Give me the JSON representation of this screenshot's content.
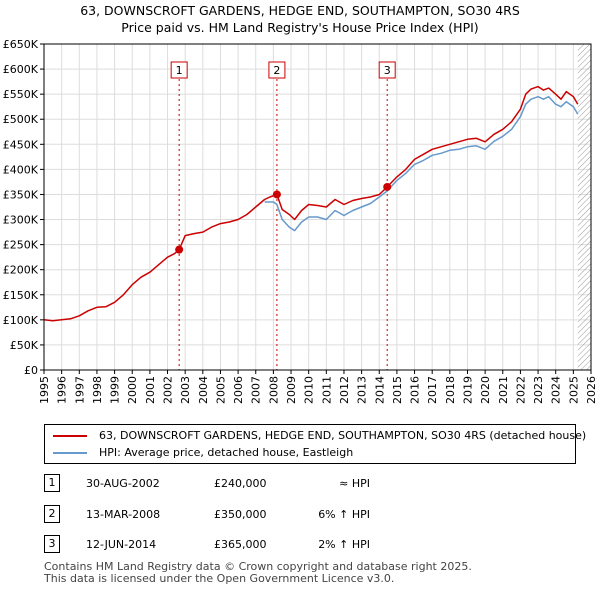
{
  "chart_data": {
    "type": "line",
    "title": "63, DOWNSCROFT GARDENS, HEDGE END, SOUTHAMPTON, SO30 4RS",
    "subtitle": "Price paid vs. HM Land Registry's House Price Index (HPI)",
    "xlabel": "",
    "ylabel": "",
    "xlim": [
      1995,
      2026
    ],
    "ylim": [
      0,
      650000
    ],
    "y_ticks": [
      0,
      50000,
      100000,
      150000,
      200000,
      250000,
      300000,
      350000,
      400000,
      450000,
      500000,
      550000,
      600000,
      650000
    ],
    "y_tick_labels": [
      "£0",
      "£50K",
      "£100K",
      "£150K",
      "£200K",
      "£250K",
      "£300K",
      "£350K",
      "£400K",
      "£450K",
      "£500K",
      "£550K",
      "£600K",
      "£650K"
    ],
    "x_ticks": [
      1995,
      1996,
      1997,
      1998,
      1999,
      2000,
      2001,
      2002,
      2003,
      2004,
      2005,
      2006,
      2007,
      2008,
      2009,
      2010,
      2011,
      2012,
      2013,
      2014,
      2015,
      2016,
      2017,
      2018,
      2019,
      2020,
      2021,
      2022,
      2023,
      2024,
      2025,
      2026
    ],
    "x_tick_labels": [
      "1995",
      "1996",
      "1997",
      "1998",
      "1999",
      "2000",
      "2001",
      "2002",
      "2003",
      "2004",
      "2005",
      "2006",
      "2007",
      "2008",
      "2009",
      "2010",
      "2011",
      "2012",
      "2013",
      "2014",
      "2015",
      "2016",
      "2017",
      "2018",
      "2019",
      "2020",
      "2021",
      "2022",
      "2023",
      "2024",
      "2025",
      "2026"
    ],
    "grid": true,
    "future_hatch_from": 2025.25,
    "series": [
      {
        "name": "63, DOWNSCROFT GARDENS, HEDGE END, SOUTHAMPTON, SO30 4RS (detached house)",
        "color": "#cc0000",
        "x": [
          1995.0,
          1995.5,
          1996.0,
          1996.5,
          1997.0,
          1997.5,
          1998.0,
          1998.5,
          1999.0,
          1999.5,
          2000.0,
          2000.5,
          2001.0,
          2001.5,
          2002.0,
          2002.4,
          2002.66,
          2003.0,
          2003.5,
          2004.0,
          2004.5,
          2005.0,
          2005.5,
          2006.0,
          2006.5,
          2007.0,
          2007.5,
          2007.8,
          2008.2,
          2008.5,
          2008.9,
          2009.2,
          2009.6,
          2010.0,
          2010.5,
          2011.0,
          2011.5,
          2012.0,
          2012.5,
          2013.0,
          2013.5,
          2014.0,
          2014.45,
          2015.0,
          2015.5,
          2016.0,
          2016.5,
          2017.0,
          2017.5,
          2018.0,
          2018.5,
          2019.0,
          2019.5,
          2020.0,
          2020.5,
          2021.0,
          2021.5,
          2022.0,
          2022.3,
          2022.6,
          2023.0,
          2023.3,
          2023.6,
          2024.0,
          2024.3,
          2024.6,
          2025.0,
          2025.25
        ],
        "values": [
          100000,
          98000,
          100000,
          102000,
          108000,
          118000,
          125000,
          126000,
          135000,
          150000,
          170000,
          185000,
          195000,
          210000,
          225000,
          232000,
          240000,
          268000,
          272000,
          275000,
          285000,
          292000,
          295000,
          300000,
          310000,
          325000,
          340000,
          345000,
          350000,
          320000,
          310000,
          300000,
          318000,
          330000,
          328000,
          325000,
          340000,
          330000,
          338000,
          342000,
          345000,
          350000,
          365000,
          385000,
          400000,
          420000,
          430000,
          440000,
          445000,
          450000,
          455000,
          460000,
          462000,
          455000,
          470000,
          480000,
          495000,
          520000,
          550000,
          560000,
          565000,
          558000,
          562000,
          550000,
          540000,
          555000,
          545000,
          530000
        ]
      },
      {
        "name": "HPI: Average price, detached house, Eastleigh",
        "color": "#6699cc",
        "x": [
          2007.5,
          2008.0,
          2008.2,
          2008.5,
          2008.9,
          2009.2,
          2009.6,
          2010.0,
          2010.5,
          2011.0,
          2011.5,
          2012.0,
          2012.5,
          2013.0,
          2013.5,
          2014.0,
          2014.45,
          2015.0,
          2015.5,
          2016.0,
          2016.5,
          2017.0,
          2017.5,
          2018.0,
          2018.5,
          2019.0,
          2019.5,
          2020.0,
          2020.5,
          2021.0,
          2021.5,
          2022.0,
          2022.3,
          2022.6,
          2023.0,
          2023.3,
          2023.6,
          2024.0,
          2024.3,
          2024.6,
          2025.0,
          2025.25
        ],
        "values": [
          335000,
          335000,
          330000,
          300000,
          285000,
          278000,
          295000,
          305000,
          305000,
          300000,
          318000,
          308000,
          318000,
          325000,
          332000,
          345000,
          357000,
          378000,
          392000,
          410000,
          418000,
          428000,
          432000,
          438000,
          440000,
          445000,
          447000,
          440000,
          456000,
          466000,
          480000,
          505000,
          530000,
          540000,
          545000,
          540000,
          545000,
          530000,
          525000,
          535000,
          525000,
          510000
        ]
      }
    ],
    "sales": [
      {
        "label": "1",
        "x": 2002.66,
        "price": 240000
      },
      {
        "label": "2",
        "x": 2008.2,
        "price": 350000
      },
      {
        "label": "3",
        "x": 2014.45,
        "price": 365000
      }
    ]
  },
  "legend": {
    "property_label": "63, DOWNSCROFT GARDENS, HEDGE END, SOUTHAMPTON, SO30 4RS (detached house)",
    "hpi_label": "HPI: Average price, detached house, Eastleigh",
    "property_color": "#cc0000",
    "hpi_color": "#6699cc"
  },
  "sales_table": [
    {
      "num": "1",
      "date": "30-AUG-2002",
      "price": "£240,000",
      "hpi": "≈ HPI"
    },
    {
      "num": "2",
      "date": "13-MAR-2008",
      "price": "£350,000",
      "hpi": "6% ↑ HPI"
    },
    {
      "num": "3",
      "date": "12-JUN-2014",
      "price": "£365,000",
      "hpi": "2% ↑ HPI"
    }
  ],
  "footer": {
    "line1": "Contains HM Land Registry data © Crown copyright and database right 2025.",
    "line2": "This data is licensed under the Open Government Licence v3.0."
  }
}
